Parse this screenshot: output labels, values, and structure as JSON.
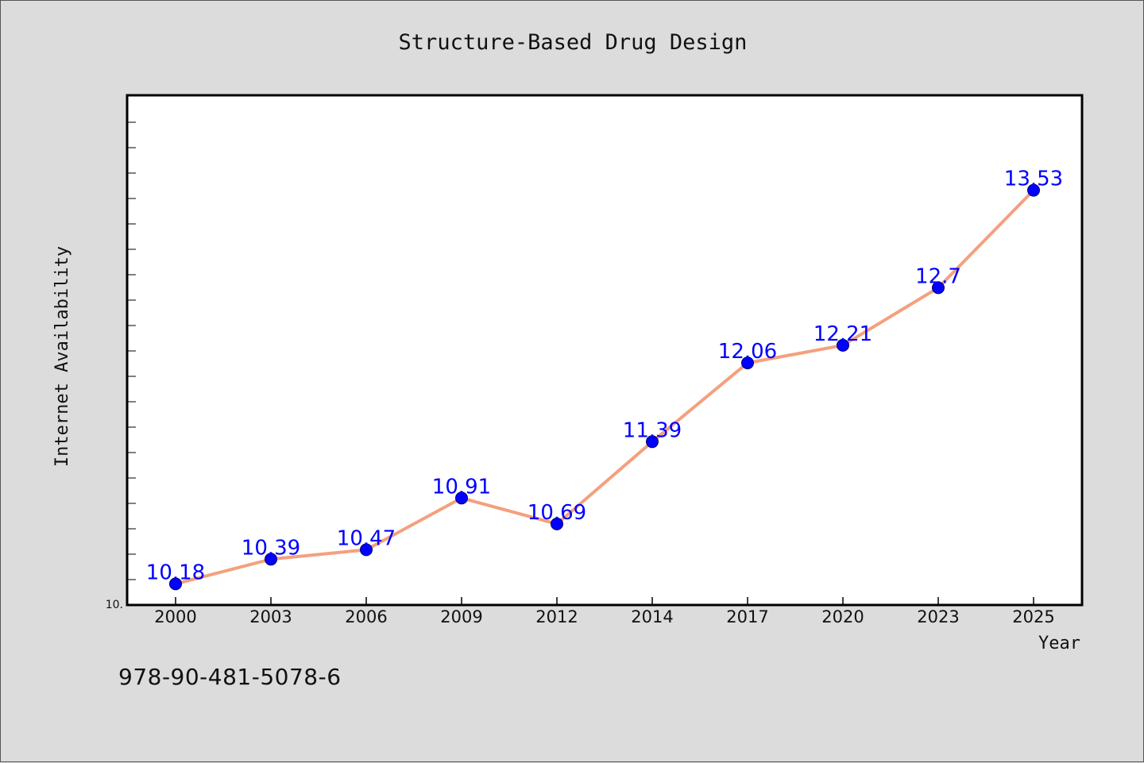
{
  "chart_data": {
    "type": "line",
    "title": "Structure-Based Drug Design",
    "xlabel": "Year",
    "ylabel": "Internet Availability",
    "categories": [
      "2000",
      "2003",
      "2006",
      "2009",
      "2012",
      "2014",
      "2017",
      "2020",
      "2023",
      "2025"
    ],
    "series": [
      {
        "values": [
          10.18,
          10.39,
          10.47,
          10.91,
          10.69,
          11.39,
          12.06,
          12.21,
          12.7,
          13.53
        ]
      }
    ],
    "data_labels": [
      "10.18",
      "10.39",
      "10.47",
      "10.91",
      "10.69",
      "11.39",
      "12.06",
      "12.21",
      "12.7",
      "13.53"
    ],
    "y_tick_label": "10.",
    "ylim": [
      10.0,
      14.0
    ],
    "grid": false,
    "line_color": "#f4a07e",
    "marker_color": "#0000ff",
    "label_color": "#0000ff"
  },
  "footer": {
    "isbn": "978-90-481-5078-6"
  }
}
